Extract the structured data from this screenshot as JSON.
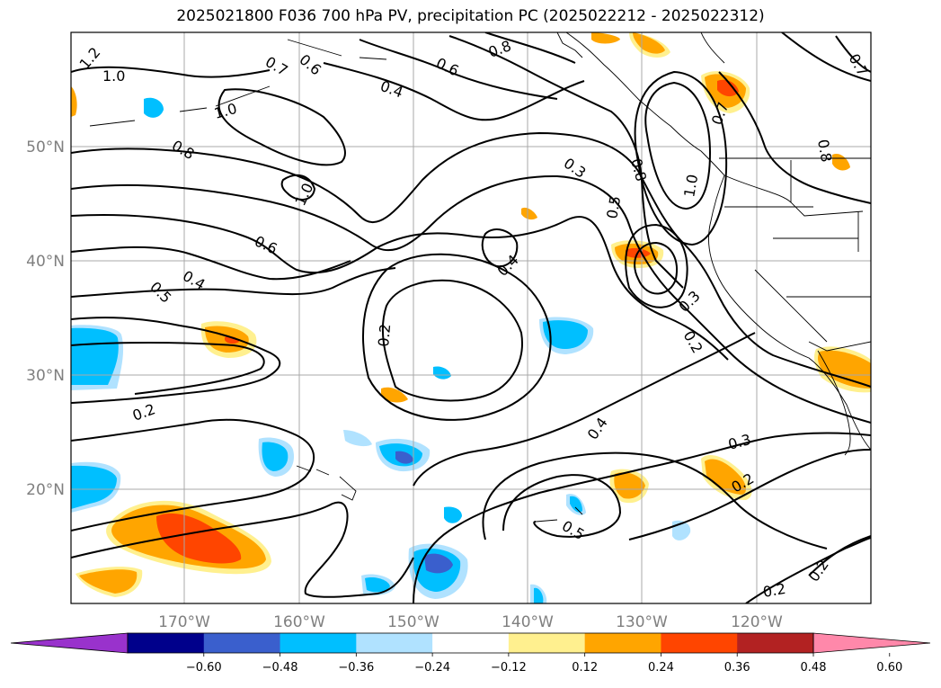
{
  "title": "2025021800 F036 700 hPa PV, precipitation PC (2025022212 - 2025022312)",
  "lat_labels": [
    "50°N",
    "40°N",
    "30°N",
    "20°N"
  ],
  "lon_labels": [
    "170°W",
    "160°W",
    "150°W",
    "140°W",
    "130°W",
    "120°W"
  ],
  "contour_labels": [
    "1.2",
    "1.0",
    "1.0",
    "0.8",
    "0.7",
    "0.6",
    "0.4",
    "0.6",
    "0.8",
    "0.7",
    "1.0",
    "0.6",
    "0.5",
    "0.4",
    "0.4",
    "0.3",
    "0.8",
    "0.5",
    "1.0",
    "0.7",
    "0.8",
    "0.2",
    "0.3",
    "0.2",
    "0.2",
    "0.4",
    "0.5",
    "0.3",
    "0.2",
    "0.2",
    "0.2"
  ],
  "colorbar": {
    "colors": [
      "#9932cc",
      "#00008b",
      "#3a5fcd",
      "#00bfff",
      "#b0e2ff",
      "#ffffff",
      "#fff08f",
      "#ffa500",
      "#ff4500",
      "#b22222",
      "#ff88aa"
    ],
    "ticks": [
      "−0.60",
      "−0.48",
      "−0.36",
      "−0.24",
      "−0.12",
      "0.12",
      "0.24",
      "0.36",
      "0.48",
      "0.60"
    ]
  }
}
